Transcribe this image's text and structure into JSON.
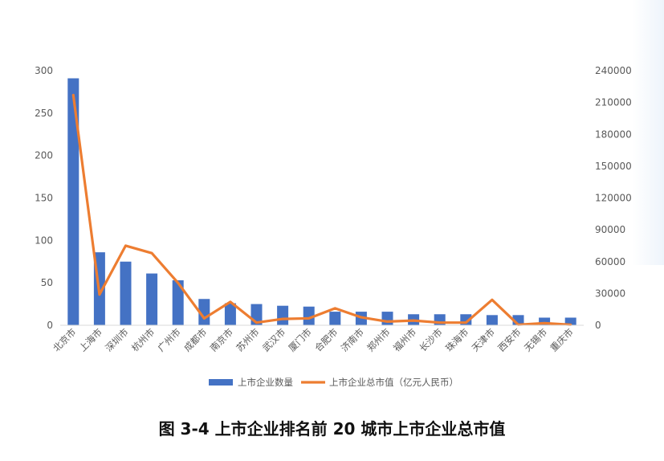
{
  "chart_data": {
    "type": "bar+line",
    "categories": [
      "北京市",
      "上海市",
      "深圳市",
      "杭州市",
      "广州市",
      "成都市",
      "南京市",
      "苏州市",
      "武汉市",
      "厦门市",
      "合肥市",
      "济南市",
      "郑州市",
      "福州市",
      "长沙市",
      "珠海市",
      "天津市",
      "西安市",
      "无锡市",
      "重庆市"
    ],
    "series": [
      {
        "name": "上市企业数量",
        "type": "bar",
        "axis": "left",
        "color": "#4472c4",
        "values": [
          291,
          86,
          75,
          61,
          53,
          31,
          26,
          25,
          23,
          22,
          16,
          16,
          16,
          13,
          13,
          13,
          12,
          12,
          9,
          9
        ]
      },
      {
        "name": "上市企业总市值（亿元人民币）",
        "type": "line",
        "axis": "right",
        "color": "#ed7d31",
        "values": [
          217000,
          29000,
          75000,
          68000,
          40000,
          6500,
          22000,
          2500,
          6000,
          6500,
          16000,
          7500,
          3500,
          4500,
          2500,
          2500,
          24000,
          500,
          2000,
          500
        ]
      }
    ],
    "y_left": {
      "range": [
        0,
        300
      ],
      "ticks": [
        "0",
        "50",
        "100",
        "150",
        "200",
        "250",
        "300"
      ]
    },
    "y_right": {
      "range": [
        0,
        240000
      ],
      "ticks": [
        "0",
        "30000",
        "60000",
        "90000",
        "120000",
        "150000",
        "180000",
        "210000",
        "240000"
      ]
    },
    "grid": false,
    "legend_position": "bottom"
  },
  "caption": "图 3-4  上市企业排名前 20 城市上市企业总市值"
}
